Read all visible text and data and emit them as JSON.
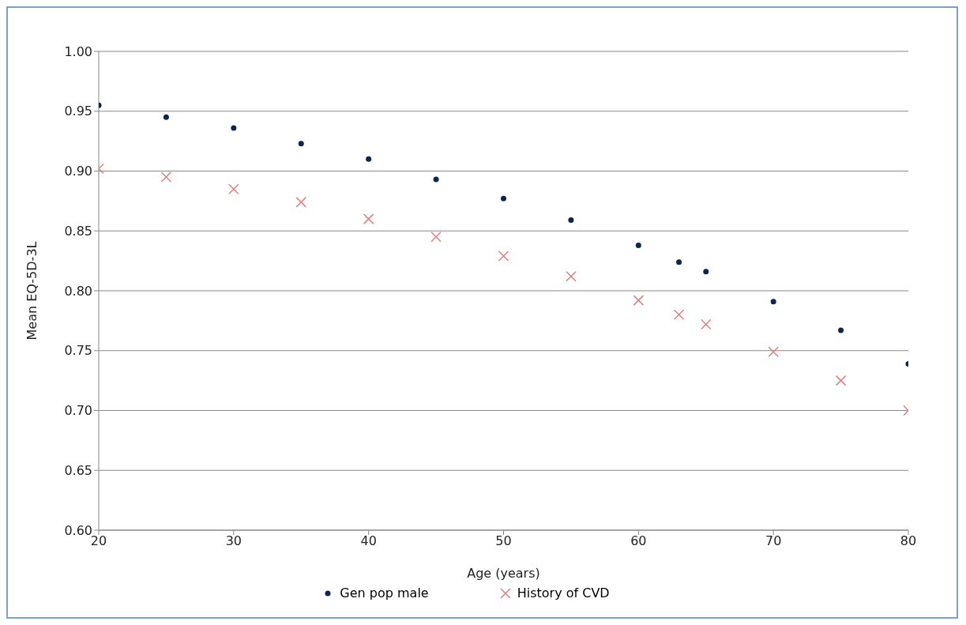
{
  "chart_data": {
    "type": "scatter",
    "xlabel": "Age  (years)",
    "ylabel": "Mean EQ-5D-3L",
    "x": [
      20,
      25,
      30,
      35,
      40,
      45,
      50,
      55,
      60,
      63,
      65,
      70,
      75,
      80
    ],
    "series": [
      {
        "name": "Gen pop male",
        "color": "#0d2550",
        "marker": "circle",
        "values": [
          0.955,
          0.945,
          0.936,
          0.923,
          0.91,
          0.893,
          0.877,
          0.859,
          0.838,
          0.824,
          0.816,
          0.791,
          0.767,
          0.739
        ]
      },
      {
        "name": "History of CVD",
        "color": "#e07f7f",
        "marker": "cross",
        "values": [
          0.902,
          0.895,
          0.885,
          0.874,
          0.86,
          0.845,
          0.829,
          0.812,
          0.792,
          0.78,
          0.772,
          0.749,
          0.725,
          0.7
        ]
      }
    ],
    "xlim": [
      20,
      80
    ],
    "xticks": [
      20,
      30,
      40,
      50,
      60,
      70,
      80
    ],
    "ylim": [
      0.6,
      1.0
    ],
    "yticks": [
      {
        "value": 0.6,
        "label": "0.60"
      },
      0.65,
      {
        "value": 0.7,
        "label": "0.70"
      },
      0.75,
      {
        "value": 0.8,
        "label": "0.80"
      },
      0.85,
      {
        "value": 0.9,
        "label": "0.90"
      },
      0.95,
      {
        "value": 1.0,
        "label": "1.00"
      }
    ],
    "grid": "y",
    "legend": "bottom"
  }
}
